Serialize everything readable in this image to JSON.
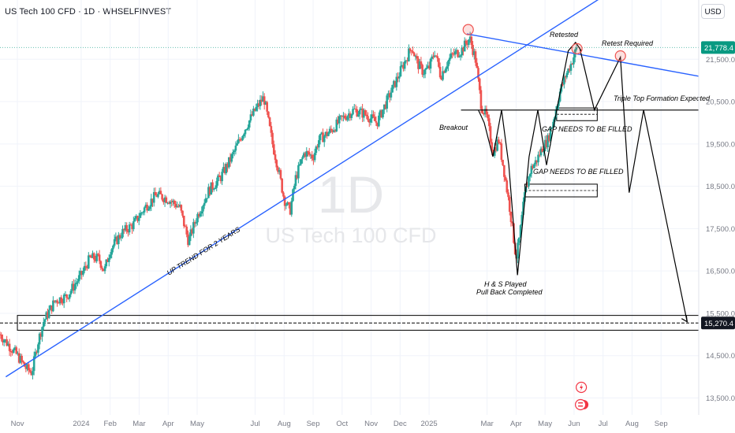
{
  "header": {
    "title": "US Tech 100 CFD · 1D · WHSELFINVEST",
    "currency": "USD"
  },
  "watermark": {
    "timeframe": "1D",
    "symbol": "US Tech 100 CFD"
  },
  "colors": {
    "up": "#26a69a",
    "down": "#ef5350",
    "trend": "#2962ff",
    "price_tag": "#089981",
    "axis_text": "#787b86"
  },
  "chart_data": {
    "type": "candlestick",
    "y_ticks": [
      13500,
      14500,
      15500,
      16500,
      17500,
      18500,
      19500,
      20500,
      21500
    ],
    "y_tick_labels": [
      "13,500.0",
      "14,500.0",
      "15,500.0",
      "16,500.0",
      "17,500.0",
      "18,500.0",
      "19,500.0",
      "20,500.0",
      "21,500.0"
    ],
    "ylim": [
      13100,
      22900
    ],
    "x_labels": [
      {
        "label": "Nov",
        "x": 0
      },
      {
        "label": "2024",
        "x": 2.2
      },
      {
        "label": "Feb",
        "x": 3.2
      },
      {
        "label": "Mar",
        "x": 4.2
      },
      {
        "label": "Apr",
        "x": 5.2
      },
      {
        "label": "May",
        "x": 6.2
      },
      {
        "label": "Jul",
        "x": 8.2
      },
      {
        "label": "Aug",
        "x": 9.2
      },
      {
        "label": "Sep",
        "x": 10.2
      },
      {
        "label": "Oct",
        "x": 11.2
      },
      {
        "label": "Nov",
        "x": 12.2
      },
      {
        "label": "Dec",
        "x": 13.2
      },
      {
        "label": "2025",
        "x": 14.2
      },
      {
        "label": "Mar",
        "x": 16.2
      },
      {
        "label": "Apr",
        "x": 17.2
      },
      {
        "label": "May",
        "x": 18.2
      },
      {
        "label": "Jun",
        "x": 19.2
      },
      {
        "label": "Jul",
        "x": 20.2
      },
      {
        "label": "Aug",
        "x": 21.2
      },
      {
        "label": "Sep",
        "x": 22.2
      }
    ],
    "x_domain": [
      -0.6,
      23.5
    ],
    "close_path": [
      [
        -0.6,
        15000
      ],
      [
        0.0,
        14500
      ],
      [
        0.3,
        14200
      ],
      [
        0.5,
        14100
      ],
      [
        0.7,
        14800
      ],
      [
        0.9,
        15300
      ],
      [
        1.3,
        15800
      ],
      [
        1.7,
        15900
      ],
      [
        2.0,
        16200
      ],
      [
        2.2,
        16400
      ],
      [
        2.5,
        16800
      ],
      [
        2.8,
        16800
      ],
      [
        3.0,
        16500
      ],
      [
        3.2,
        17000
      ],
      [
        3.6,
        17400
      ],
      [
        4.0,
        17600
      ],
      [
        4.4,
        18000
      ],
      [
        4.8,
        18300
      ],
      [
        5.2,
        18200
      ],
      [
        5.6,
        18000
      ],
      [
        5.9,
        17200
      ],
      [
        6.2,
        17800
      ],
      [
        6.6,
        18400
      ],
      [
        7.0,
        18700
      ],
      [
        7.4,
        19200
      ],
      [
        7.8,
        19800
      ],
      [
        8.2,
        20300
      ],
      [
        8.5,
        20600
      ],
      [
        8.8,
        19500
      ],
      [
        9.0,
        18900
      ],
      [
        9.2,
        18200
      ],
      [
        9.4,
        17900
      ],
      [
        9.6,
        18700
      ],
      [
        9.9,
        19300
      ],
      [
        10.2,
        19200
      ],
      [
        10.4,
        19600
      ],
      [
        10.8,
        19800
      ],
      [
        11.2,
        20100
      ],
      [
        11.6,
        20300
      ],
      [
        12.0,
        20200
      ],
      [
        12.4,
        20000
      ],
      [
        12.8,
        20600
      ],
      [
        13.2,
        21200
      ],
      [
        13.4,
        21500
      ],
      [
        13.6,
        21800
      ],
      [
        13.8,
        21400
      ],
      [
        14.0,
        21200
      ],
      [
        14.2,
        21300
      ],
      [
        14.4,
        21700
      ],
      [
        14.6,
        21100
      ],
      [
        14.8,
        21400
      ],
      [
        15.0,
        21600
      ],
      [
        15.3,
        21700
      ],
      [
        15.6,
        22000
      ],
      [
        15.8,
        21500
      ],
      [
        16.0,
        20400
      ],
      [
        16.2,
        20100
      ],
      [
        16.4,
        19300
      ],
      [
        16.6,
        19600
      ],
      [
        16.8,
        18800
      ],
      [
        17.0,
        17900
      ],
      [
        17.2,
        16800
      ],
      [
        17.3,
        17200
      ],
      [
        17.5,
        18300
      ],
      [
        17.7,
        18900
      ],
      [
        17.9,
        19100
      ],
      [
        18.1,
        19400
      ],
      [
        18.3,
        19600
      ],
      [
        18.5,
        20100
      ],
      [
        18.7,
        20700
      ],
      [
        18.9,
        21100
      ],
      [
        19.1,
        21400
      ],
      [
        19.3,
        21778.4
      ]
    ],
    "last_price": 21778.4,
    "last_price_label": "21,778.4",
    "target_price": 15270.4,
    "target_price_label": "15,270.4",
    "horizontal_levels": [
      20300,
      15450,
      15100
    ],
    "gap_zones": [
      {
        "from": 20050,
        "to": 20350,
        "x_start": 18.6,
        "x_end": 20.0
      },
      {
        "from": 18250,
        "to": 18550,
        "x_start": 17.5,
        "x_end": 20.0
      }
    ],
    "trendlines": [
      {
        "name": "uptrend",
        "points": [
          [
            -0.4,
            14000
          ],
          [
            20.7,
            23200
          ]
        ]
      },
      {
        "name": "resistance",
        "points": [
          [
            15.5,
            22100
          ],
          [
            23.5,
            21100
          ]
        ]
      }
    ],
    "projection_path": [
      [
        19.4,
        21750
      ],
      [
        19.9,
        20300
      ],
      [
        20.8,
        21550
      ],
      [
        21.1,
        18350
      ],
      [
        21.6,
        20300
      ],
      [
        23.1,
        15300
      ]
    ],
    "hs_path": [
      [
        15.9,
        20300
      ],
      [
        16.1,
        20000
      ],
      [
        16.4,
        19200
      ],
      [
        16.7,
        20300
      ],
      [
        16.95,
        19000
      ],
      [
        17.25,
        16400
      ],
      [
        17.65,
        19200
      ],
      [
        17.95,
        20300
      ],
      [
        18.25,
        19000
      ],
      [
        18.6,
        20300
      ],
      [
        19.0,
        21700
      ],
      [
        19.25,
        21900
      ],
      [
        19.45,
        21700
      ]
    ],
    "markers": [
      {
        "name": "peak",
        "x": 15.55,
        "y": 22200
      },
      {
        "name": "retested",
        "x": 19.3,
        "y": 21750
      },
      {
        "name": "retest-required",
        "x": 20.8,
        "y": 21580
      }
    ],
    "annotations": {
      "retested": "Retested",
      "retest_required": "Retest Required",
      "triple_top": "Triple Top Formation Expected",
      "breakout": "Breakout",
      "gap1": "GAP NEEDS TO BE FILLED",
      "gap2": "GAP NEEDS TO BE FILLED",
      "uptrend": "UP TREND FOR 2 YEARS",
      "hs_line1": "H & S Played",
      "hs_line2": "Pull Back Completed"
    }
  }
}
